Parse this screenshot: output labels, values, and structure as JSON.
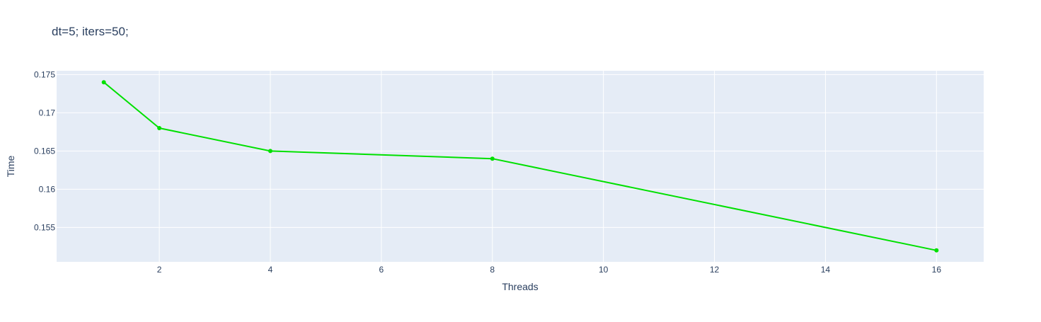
{
  "chart_data": {
    "type": "line",
    "title": "dt=5; iters=50;",
    "xlabel": "Threads",
    "ylabel": "Time",
    "x": [
      1,
      2,
      4,
      8,
      16
    ],
    "series": [
      {
        "values": [
          0.174,
          0.168,
          0.165,
          0.164,
          0.152
        ],
        "color": "#00e000"
      }
    ],
    "xlim": [
      0.15,
      16.85
    ],
    "ylim": [
      0.1505,
      0.1755
    ],
    "xticks": [
      2,
      4,
      6,
      8,
      10,
      12,
      14,
      16
    ],
    "xtick_labels": [
      "2",
      "4",
      "6",
      "8",
      "10",
      "12",
      "14",
      "16"
    ],
    "yticks": [
      0.155,
      0.16,
      0.165,
      0.17,
      0.175
    ],
    "ytick_labels": [
      "0.155",
      "0.16",
      "0.165",
      "0.17",
      "0.175"
    ],
    "grid": true,
    "legend": "none",
    "colors": {
      "plot_background": "#e5ecf6",
      "grid": "#ffffff",
      "text": "#2a3f5f"
    }
  }
}
